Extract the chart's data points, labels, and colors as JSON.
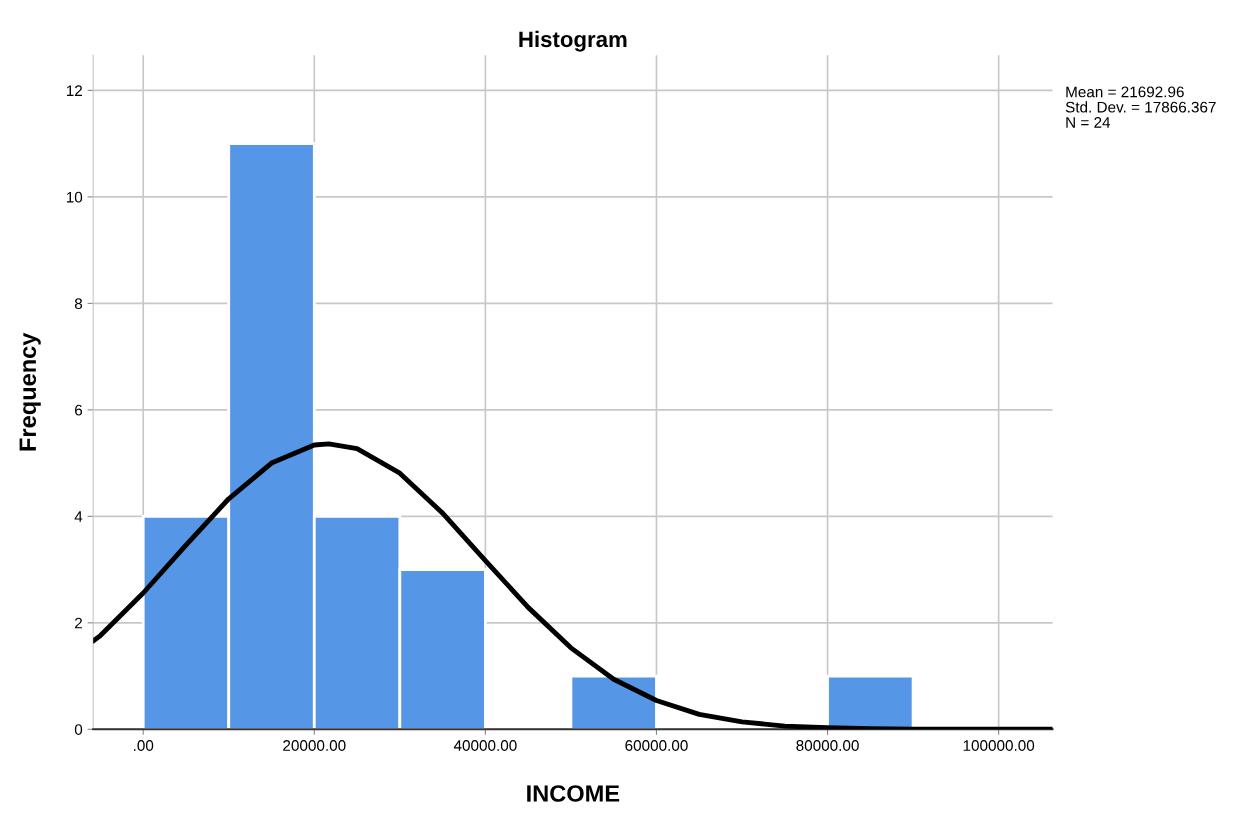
{
  "chart_data": {
    "type": "histogram",
    "title": "Histogram",
    "xlabel": "INCOME",
    "ylabel": "Frequency",
    "series": [
      {
        "type": "histogram",
        "bins": [
          0,
          10000,
          20000,
          30000,
          40000,
          50000,
          60000,
          70000,
          80000,
          90000
        ],
        "values": [
          4,
          11,
          4,
          3,
          0,
          1,
          0,
          0,
          1
        ],
        "color": "#5596e6"
      },
      {
        "type": "line",
        "color": "#000000",
        "x": [
          -5850,
          -5000,
          0,
          5000,
          10000,
          15000,
          20000,
          21693,
          25000,
          30000,
          35000,
          40000,
          45000,
          50000,
          55000,
          60000,
          65000,
          70000,
          75000,
          80000,
          85000,
          90000,
          95000,
          100000,
          106300
        ],
        "values": [
          1.66,
          1.76,
          2.56,
          3.46,
          4.33,
          5.0,
          5.34,
          5.36,
          5.27,
          4.81,
          4.06,
          3.17,
          2.29,
          1.53,
          0.94,
          0.54,
          0.28,
          0.14,
          0.06,
          0.03,
          0.01,
          0.0,
          0.0,
          0.0,
          0.0
        ]
      }
    ],
    "xlim": [
      -5850,
      106300
    ],
    "xticks": [
      {
        "value": 0,
        "label": ".00"
      },
      {
        "value": 20000,
        "label": "20000.00"
      },
      {
        "value": 40000,
        "label": "40000.00"
      },
      {
        "value": 60000,
        "label": "60000.00"
      },
      {
        "value": 80000,
        "label": "80000.00"
      },
      {
        "value": 100000,
        "label": "100000.00"
      }
    ],
    "ylim": [
      0,
      12.66
    ],
    "yticks": [
      0,
      2,
      4,
      6,
      8,
      10,
      12
    ],
    "grid": true,
    "marker": "none",
    "line_style": "solid",
    "annotations": [
      "Mean = 21692.96",
      "Std. Dev. = 17866.367",
      "N = 24"
    ]
  }
}
